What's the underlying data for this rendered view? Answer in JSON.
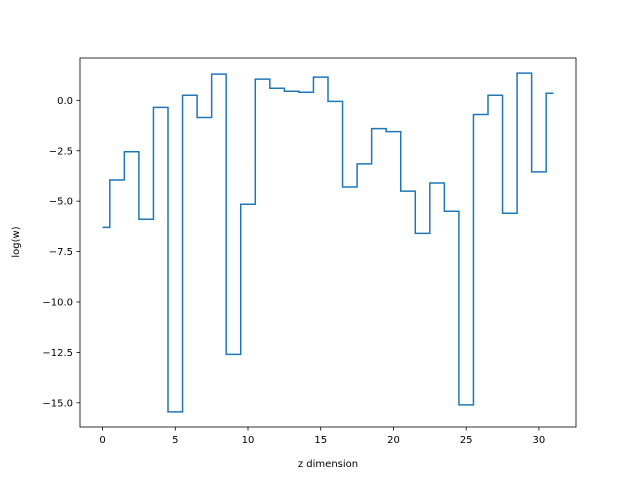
{
  "chart_data": {
    "type": "line",
    "drawstyle": "steps-mid",
    "title": "",
    "xlabel": "z dimension",
    "ylabel": "log(w)",
    "xlim": [
      -1.55,
      32.55
    ],
    "ylim": [
      -16.2,
      2.1
    ],
    "xticks": [
      0,
      5,
      10,
      15,
      20,
      25,
      30
    ],
    "xtick_labels": [
      "0",
      "5",
      "10",
      "15",
      "20",
      "25",
      "30"
    ],
    "yticks": [
      0.0,
      -2.5,
      -5.0,
      -7.5,
      -10.0,
      -12.5,
      -15.0
    ],
    "ytick_labels": [
      "0.0",
      "−2.5",
      "−5.0",
      "−7.5",
      "−10.0",
      "−12.5",
      "−15.0"
    ],
    "grid": false,
    "series": [
      {
        "color": "#1f77b4",
        "x": [
          0,
          1,
          2,
          3,
          4,
          5,
          6,
          7,
          8,
          9,
          10,
          11,
          12,
          13,
          14,
          15,
          16,
          17,
          18,
          19,
          20,
          21,
          22,
          23,
          24,
          25,
          26,
          27,
          28,
          29,
          30,
          31
        ],
        "values": [
          -6.3,
          -3.95,
          -2.55,
          -5.9,
          -0.35,
          -15.45,
          0.25,
          -0.85,
          1.3,
          -12.6,
          -5.15,
          1.05,
          0.6,
          0.45,
          0.4,
          1.15,
          -0.05,
          -4.3,
          -3.15,
          -1.4,
          -1.55,
          -4.5,
          -6.6,
          -4.1,
          -5.5,
          -15.1,
          -0.7,
          0.25,
          -5.6,
          1.35,
          -3.55,
          0.35
        ]
      }
    ]
  }
}
